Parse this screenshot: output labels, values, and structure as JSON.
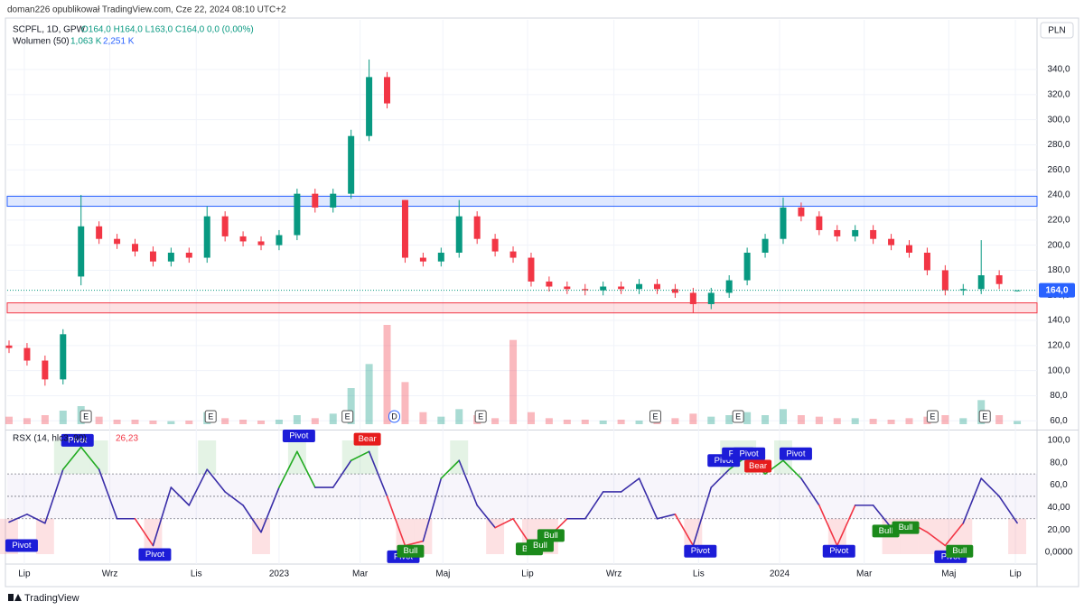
{
  "header": {
    "publisher": "doman226 opublikował TradingView.com, Cze 22, 2024 08:10 UTC+2",
    "symbol": "SCPFL, 1D, GPW",
    "ohlc": "O164,0 H164,0 L163,0 C164,0 0,0 (0,00%)",
    "volume_label": "Wolumen (50)",
    "volume_value": "1,063 K",
    "volume_ma": "2,251 K",
    "currency": "PLN",
    "footer": "TradingView"
  },
  "chart_data": [
    {
      "type": "candlestick",
      "open": [
        120,
        118,
        108,
        93,
        175,
        215,
        205,
        201,
        195,
        187,
        194,
        190,
        223,
        207,
        203,
        200,
        208,
        241,
        230,
        241,
        287,
        334,
        236,
        190,
        187,
        194,
        223,
        205,
        195,
        190,
        171,
        167,
        165,
        164,
        167,
        165,
        169,
        165,
        162,
        153,
        162,
        172,
        194,
        205,
        230,
        223,
        212,
        207,
        212,
        205,
        200,
        194,
        180,
        164,
        165,
        176,
        164
      ],
      "high": [
        124,
        122,
        112,
        133,
        240,
        219,
        209,
        205,
        199,
        198,
        198,
        231,
        227,
        211,
        207,
        212,
        245,
        245,
        245,
        292,
        348,
        338,
        236,
        194,
        198,
        236,
        227,
        209,
        199,
        194,
        175,
        171,
        169,
        171,
        171,
        173,
        173,
        169,
        166,
        166,
        176,
        198,
        209,
        238,
        234,
        227,
        216,
        216,
        216,
        209,
        204,
        198,
        184,
        169,
        204,
        180,
        164
      ],
      "low": [
        114,
        104,
        88,
        89,
        168,
        201,
        197,
        191,
        183,
        183,
        186,
        186,
        203,
        199,
        196,
        196,
        204,
        226,
        226,
        237,
        283,
        309,
        186,
        183,
        183,
        190,
        201,
        191,
        186,
        167,
        163,
        161,
        160,
        160,
        161,
        161,
        161,
        158,
        146,
        149,
        158,
        168,
        190,
        201,
        219,
        208,
        203,
        203,
        201,
        196,
        190,
        176,
        160,
        160,
        161,
        165,
        163
      ],
      "close": [
        118,
        108,
        93,
        129,
        215,
        205,
        201,
        195,
        187,
        194,
        190,
        223,
        207,
        203,
        200,
        208,
        241,
        230,
        241,
        287,
        334,
        313,
        190,
        187,
        194,
        223,
        205,
        195,
        190,
        171,
        167,
        165,
        164,
        167,
        165,
        169,
        165,
        162,
        153,
        162,
        172,
        194,
        205,
        230,
        223,
        212,
        207,
        212,
        205,
        200,
        194,
        180,
        164,
        165,
        176,
        169,
        164
      ],
      "volume": [
        2500,
        2000,
        3000,
        4500,
        6000,
        2500,
        1500,
        1500,
        1200,
        1000,
        1200,
        4000,
        2000,
        1500,
        1200,
        1500,
        3000,
        2000,
        3500,
        12000,
        20000,
        33000,
        14000,
        4000,
        2500,
        5000,
        3000,
        2000,
        28000,
        4000,
        2000,
        1500,
        1500,
        1200,
        1500,
        1200,
        1500,
        2000,
        3500,
        2500,
        3000,
        4000,
        3000,
        5000,
        3000,
        2500,
        2000,
        2000,
        1800,
        1500,
        2000,
        2500,
        3000,
        2000,
        8000,
        3000,
        1063
      ],
      "up_color": "#089981",
      "down_color": "#f23645",
      "xlim": [
        0,
        57
      ],
      "xticks": [
        {
          "value": 0.85,
          "label": "Lip"
        },
        {
          "value": 5.6,
          "label": "Wrz"
        },
        {
          "value": 10.4,
          "label": "Lis"
        },
        {
          "value": 15,
          "label": "2023"
        },
        {
          "value": 19.5,
          "label": "Mar"
        },
        {
          "value": 24.1,
          "label": "Maj"
        },
        {
          "value": 28.8,
          "label": "Lip"
        },
        {
          "value": 33.6,
          "label": "Wrz"
        },
        {
          "value": 38.3,
          "label": "Lis"
        },
        {
          "value": 42.8,
          "label": "2024"
        },
        {
          "value": 47.5,
          "label": "Mar"
        },
        {
          "value": 52.2,
          "label": "Maj"
        },
        {
          "value": 55.9,
          "label": "Lip"
        }
      ],
      "ylim": [
        53.7,
        379.6
      ],
      "yticks": [
        {
          "value": 60,
          "label": "60,0"
        },
        {
          "value": 80,
          "label": "80,0"
        },
        {
          "value": 100,
          "label": "100,0"
        },
        {
          "value": 120,
          "label": "120,0"
        },
        {
          "value": 140,
          "label": "140,0"
        },
        {
          "value": 160,
          "label": "160,0"
        },
        {
          "value": 180,
          "label": "180,0"
        },
        {
          "value": 200,
          "label": "200,0"
        },
        {
          "value": 220,
          "label": "220,0"
        },
        {
          "value": 240,
          "label": "240,0"
        },
        {
          "value": 260,
          "label": "260,0"
        },
        {
          "value": 280,
          "label": "280,0"
        },
        {
          "value": 300,
          "label": "300,0"
        },
        {
          "value": 320,
          "label": "320,0"
        },
        {
          "value": 340,
          "label": "340,0"
        }
      ],
      "grid": true,
      "zones": [
        {
          "from": 231,
          "to": 239,
          "color": "#2962ff"
        },
        {
          "from": 146,
          "to": 154,
          "color": "#f23645"
        }
      ],
      "last_price": {
        "value": 164,
        "label": "164,0",
        "color": "#2962ff"
      },
      "events": [
        {
          "x": 4.27,
          "label": "E"
        },
        {
          "x": 11.2,
          "label": "E"
        },
        {
          "x": 18.8,
          "label": "E"
        },
        {
          "x": 21.4,
          "label": "D"
        },
        {
          "x": 26.2,
          "label": "E"
        },
        {
          "x": 35.9,
          "label": "E"
        },
        {
          "x": 40.5,
          "label": "E"
        },
        {
          "x": 51.3,
          "label": "E"
        },
        {
          "x": 54.2,
          "label": "E"
        }
      ]
    },
    {
      "type": "line",
      "title": "RSX (14, hlc3, 90)",
      "last_value": {
        "value": 26.23,
        "label": "26,23"
      },
      "values": [
        27,
        34,
        26,
        74,
        94,
        74,
        30,
        30,
        6,
        58,
        42,
        74,
        54,
        42,
        18,
        58,
        90,
        58,
        58,
        82,
        90,
        50,
        6,
        10,
        66,
        82,
        42,
        22,
        30,
        6,
        14,
        30,
        30,
        54,
        54,
        66,
        30,
        34,
        6,
        58,
        74,
        86,
        70,
        82,
        66,
        42,
        6,
        42,
        42,
        22,
        27,
        18,
        6,
        26,
        66,
        50,
        26.23
      ],
      "colors": {
        "high": "#22ab22",
        "mid": "#3a2ea8",
        "low": "#f23645"
      },
      "bands": {
        "upper": 70,
        "middle": 50,
        "lower": 30
      },
      "xlim": [
        0,
        57
      ],
      "ylim": [
        -10.5,
        108
      ],
      "yticks": [
        {
          "value": 0,
          "label": "0,0000"
        },
        {
          "value": 20,
          "label": "20,00"
        },
        {
          "value": 40,
          "label": "40,00"
        },
        {
          "value": 60,
          "label": "60,0"
        },
        {
          "value": 80,
          "label": "80,0"
        },
        {
          "value": 100,
          "label": "100,0"
        }
      ],
      "signals": [
        {
          "label": "Pivot",
          "x": 0.7,
          "y": 6,
          "color": "#1c1cd8"
        },
        {
          "label": "Pivot",
          "x": 3.8,
          "y": 100,
          "color": "#1c1cd8"
        },
        {
          "label": "Pivot",
          "x": 8.1,
          "y": -2,
          "color": "#1c1cd8"
        },
        {
          "label": "Pivot",
          "x": 16.1,
          "y": 104,
          "color": "#1c1cd8"
        },
        {
          "label": "Bear",
          "x": 19.9,
          "y": 101,
          "color": "#e61c1c"
        },
        {
          "label": "Pivot",
          "x": 21.9,
          "y": -4,
          "color": "#1c1cd8"
        },
        {
          "label": "Bull",
          "x": 22.3,
          "y": 1,
          "color": "#1b8a1b"
        },
        {
          "label": "Bull",
          "x": 28.9,
          "y": 3,
          "color": "#1b8a1b"
        },
        {
          "label": "Bull",
          "x": 29.5,
          "y": 6,
          "color": "#1b8a1b"
        },
        {
          "label": "Bull",
          "x": 30.1,
          "y": 15,
          "color": "#1b8a1b"
        },
        {
          "label": "Pivot",
          "x": 38.4,
          "y": 1,
          "color": "#1c1cd8"
        },
        {
          "label": "Pivot",
          "x": 39.7,
          "y": 82,
          "color": "#1c1cd8"
        },
        {
          "label": "Pivot",
          "x": 40.5,
          "y": 88,
          "color": "#1c1cd8"
        },
        {
          "label": "Pivot",
          "x": 41.1,
          "y": 88,
          "color": "#1c1cd8"
        },
        {
          "label": "Bear",
          "x": 41.6,
          "y": 77,
          "color": "#e61c1c"
        },
        {
          "label": "Pivot",
          "x": 43.7,
          "y": 88,
          "color": "#1c1cd8"
        },
        {
          "label": "Pivot",
          "x": 46.1,
          "y": 1,
          "color": "#1c1cd8"
        },
        {
          "label": "Bull",
          "x": 48.7,
          "y": 19,
          "color": "#1b8a1b"
        },
        {
          "label": "Bull",
          "x": 49.8,
          "y": 22,
          "color": "#1b8a1b"
        },
        {
          "label": "Pivot",
          "x": 52.3,
          "y": -4,
          "color": "#1c1cd8"
        },
        {
          "label": "Bull",
          "x": 52.8,
          "y": 1,
          "color": "#1b8a1b"
        }
      ]
    }
  ]
}
